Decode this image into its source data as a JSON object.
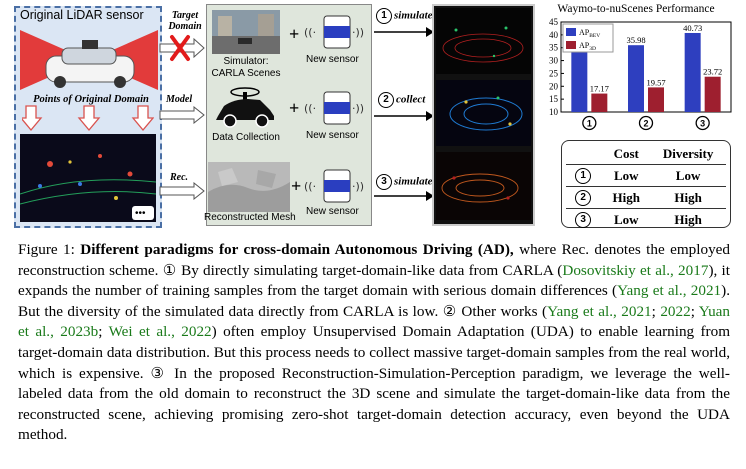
{
  "left_panel": {
    "title": "Original LiDAR sensor",
    "points_label": "Points of Original Domain",
    "ellipsis": "•••"
  },
  "arrows": {
    "target_domain": "Target Domain",
    "model": "Model",
    "rec": "Rec."
  },
  "middle_panel": {
    "row1_caption": "Simulator: CARLA Scenes",
    "row2_caption": "Data Collection",
    "row3_caption": "Reconstructed Mesh",
    "new_sensor": "New sensor",
    "plus": "+"
  },
  "steps": [
    {
      "num": "1",
      "label": "simulate"
    },
    {
      "num": "2",
      "label": "collect"
    },
    {
      "num": "3",
      "label": "simulate"
    }
  ],
  "chart_data": {
    "type": "bar",
    "title": "Waymo-to-nuScenes Performance",
    "categories": [
      "1",
      "2",
      "3"
    ],
    "series": [
      {
        "name": "AP_BEV",
        "legend": "AP",
        "legend_sub": "BEV",
        "color": "#2e3fbf",
        "values": [
          34.68,
          35.98,
          40.73
        ]
      },
      {
        "name": "AP_3D",
        "legend": "AP",
        "legend_sub": "3D",
        "color": "#9e1f2f",
        "values": [
          17.17,
          19.57,
          23.72
        ]
      }
    ],
    "yticks": [
      10,
      15,
      20,
      25,
      30,
      35,
      40,
      45
    ],
    "ylim": [
      10,
      45
    ],
    "legend_position": "top-left"
  },
  "table": {
    "headers": [
      "Cost",
      "Diversity"
    ],
    "rows": [
      {
        "num": "1",
        "cost": "Low",
        "diversity": "Low"
      },
      {
        "num": "2",
        "cost": "High",
        "diversity": "High"
      },
      {
        "num": "3",
        "cost": "Low",
        "diversity": "High"
      }
    ]
  },
  "caption": {
    "prefix": "Figure 1: ",
    "bold": "Different paradigms for cross-domain Autonomous Driving (AD),",
    "t1": " where Rec. denotes the employed reconstruction scheme. ",
    "c1": "①",
    "t2": " By directly simulating target-domain-like data from CARLA (",
    "ref_dos": "Dosovitskiy et al., 2017",
    "t3": "), it expands the number of training samples from the target domain with serious domain differences (",
    "ref_yang1": "Yang et al., 2021",
    "t4": "). But the diversity of the simulated data directly from CARLA is low. ",
    "c2": "②",
    "t5": " Other works (",
    "ref_yang2": "Yang et al., 2021",
    "sep1": "; ",
    "ref_2022": "2022",
    "sep2": "; ",
    "ref_yuan": "Yuan et al., 2023b",
    "sep3": "; ",
    "ref_wei": "Wei et al., 2022",
    "t6": ") often employ Unsupervised Domain Adaptation (UDA) to enable learning from target-domain data distribution. But this process needs to collect massive target-domain samples from the real world, which is expensive. ",
    "c3": "③",
    "t7": " In the proposed Reconstruction-Simulation-Perception paradigm, we leverage the well-labeled data from the old domain to reconstruct the 3D scene and simulate the target-domain-like data from the reconstructed scene, achieving promising zero-shot target-domain detection accuracy, even beyond the UDA method."
  }
}
